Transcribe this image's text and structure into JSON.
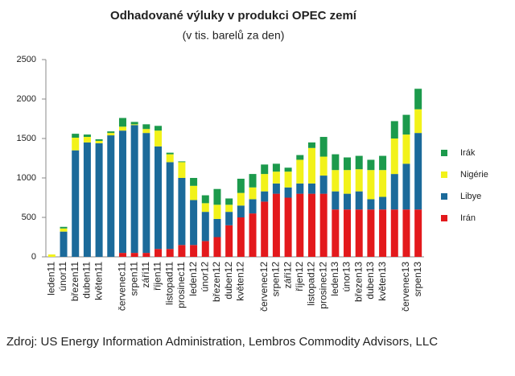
{
  "chart_data": {
    "type": "stacked_bar",
    "title": "Odhadované výluky v produkci OPEC zemí",
    "subtitle": "(v tis. barelů za den)",
    "source": "Zdroj: US Energy Information Administration, Lembros Commodity Advisors, LLC",
    "categories": [
      "leden11",
      "únor11",
      "březen11",
      "duben11",
      "květen11",
      null,
      "červenec11",
      "srpen11",
      "září11",
      "říjen11",
      "listopad11",
      "prosinec11",
      "leden12",
      "únor12",
      "březen12",
      "duben12",
      "květen12",
      null,
      "červenec12",
      "srpen12",
      "září12",
      "říjen12",
      "listopad12",
      "prosinec12",
      "leden13",
      "únor13",
      "březen13",
      "duben13",
      "květen13",
      null,
      "červenec13",
      "srpen13"
    ],
    "series": [
      {
        "name": "Irán",
        "color": "#e3191c",
        "values": [
          0,
          0,
          0,
          0,
          0,
          0,
          50,
          50,
          50,
          100,
          100,
          150,
          150,
          200,
          250,
          400,
          500,
          550,
          700,
          800,
          750,
          800,
          800,
          800,
          600,
          600,
          600,
          600,
          600,
          600,
          600,
          600
        ]
      },
      {
        "name": "Libye",
        "color": "#1b6a9a",
        "values": [
          0,
          320,
          1350,
          1450,
          1440,
          1540,
          1550,
          1620,
          1520,
          1300,
          1100,
          850,
          570,
          370,
          230,
          170,
          150,
          180,
          130,
          130,
          130,
          130,
          130,
          230,
          230,
          200,
          230,
          130,
          160,
          450,
          580,
          970
        ]
      },
      {
        "name": "Nigérie",
        "color": "#f2f21a",
        "values": [
          30,
          40,
          160,
          70,
          30,
          30,
          50,
          10,
          50,
          200,
          100,
          200,
          180,
          110,
          180,
          90,
          160,
          150,
          220,
          150,
          200,
          300,
          450,
          240,
          270,
          300,
          280,
          370,
          340,
          450,
          370,
          300
        ]
      },
      {
        "name": "Irák",
        "color": "#1c9a4c",
        "values": [
          0,
          20,
          50,
          30,
          20,
          20,
          110,
          30,
          60,
          60,
          20,
          10,
          100,
          100,
          200,
          80,
          180,
          170,
          120,
          100,
          50,
          60,
          70,
          250,
          200,
          160,
          170,
          130,
          180,
          220,
          250,
          260
        ]
      }
    ],
    "ylim": [
      0,
      2500
    ],
    "yticks": [
      0,
      500,
      1000,
      1500,
      2000,
      2500
    ],
    "legend": "right"
  }
}
